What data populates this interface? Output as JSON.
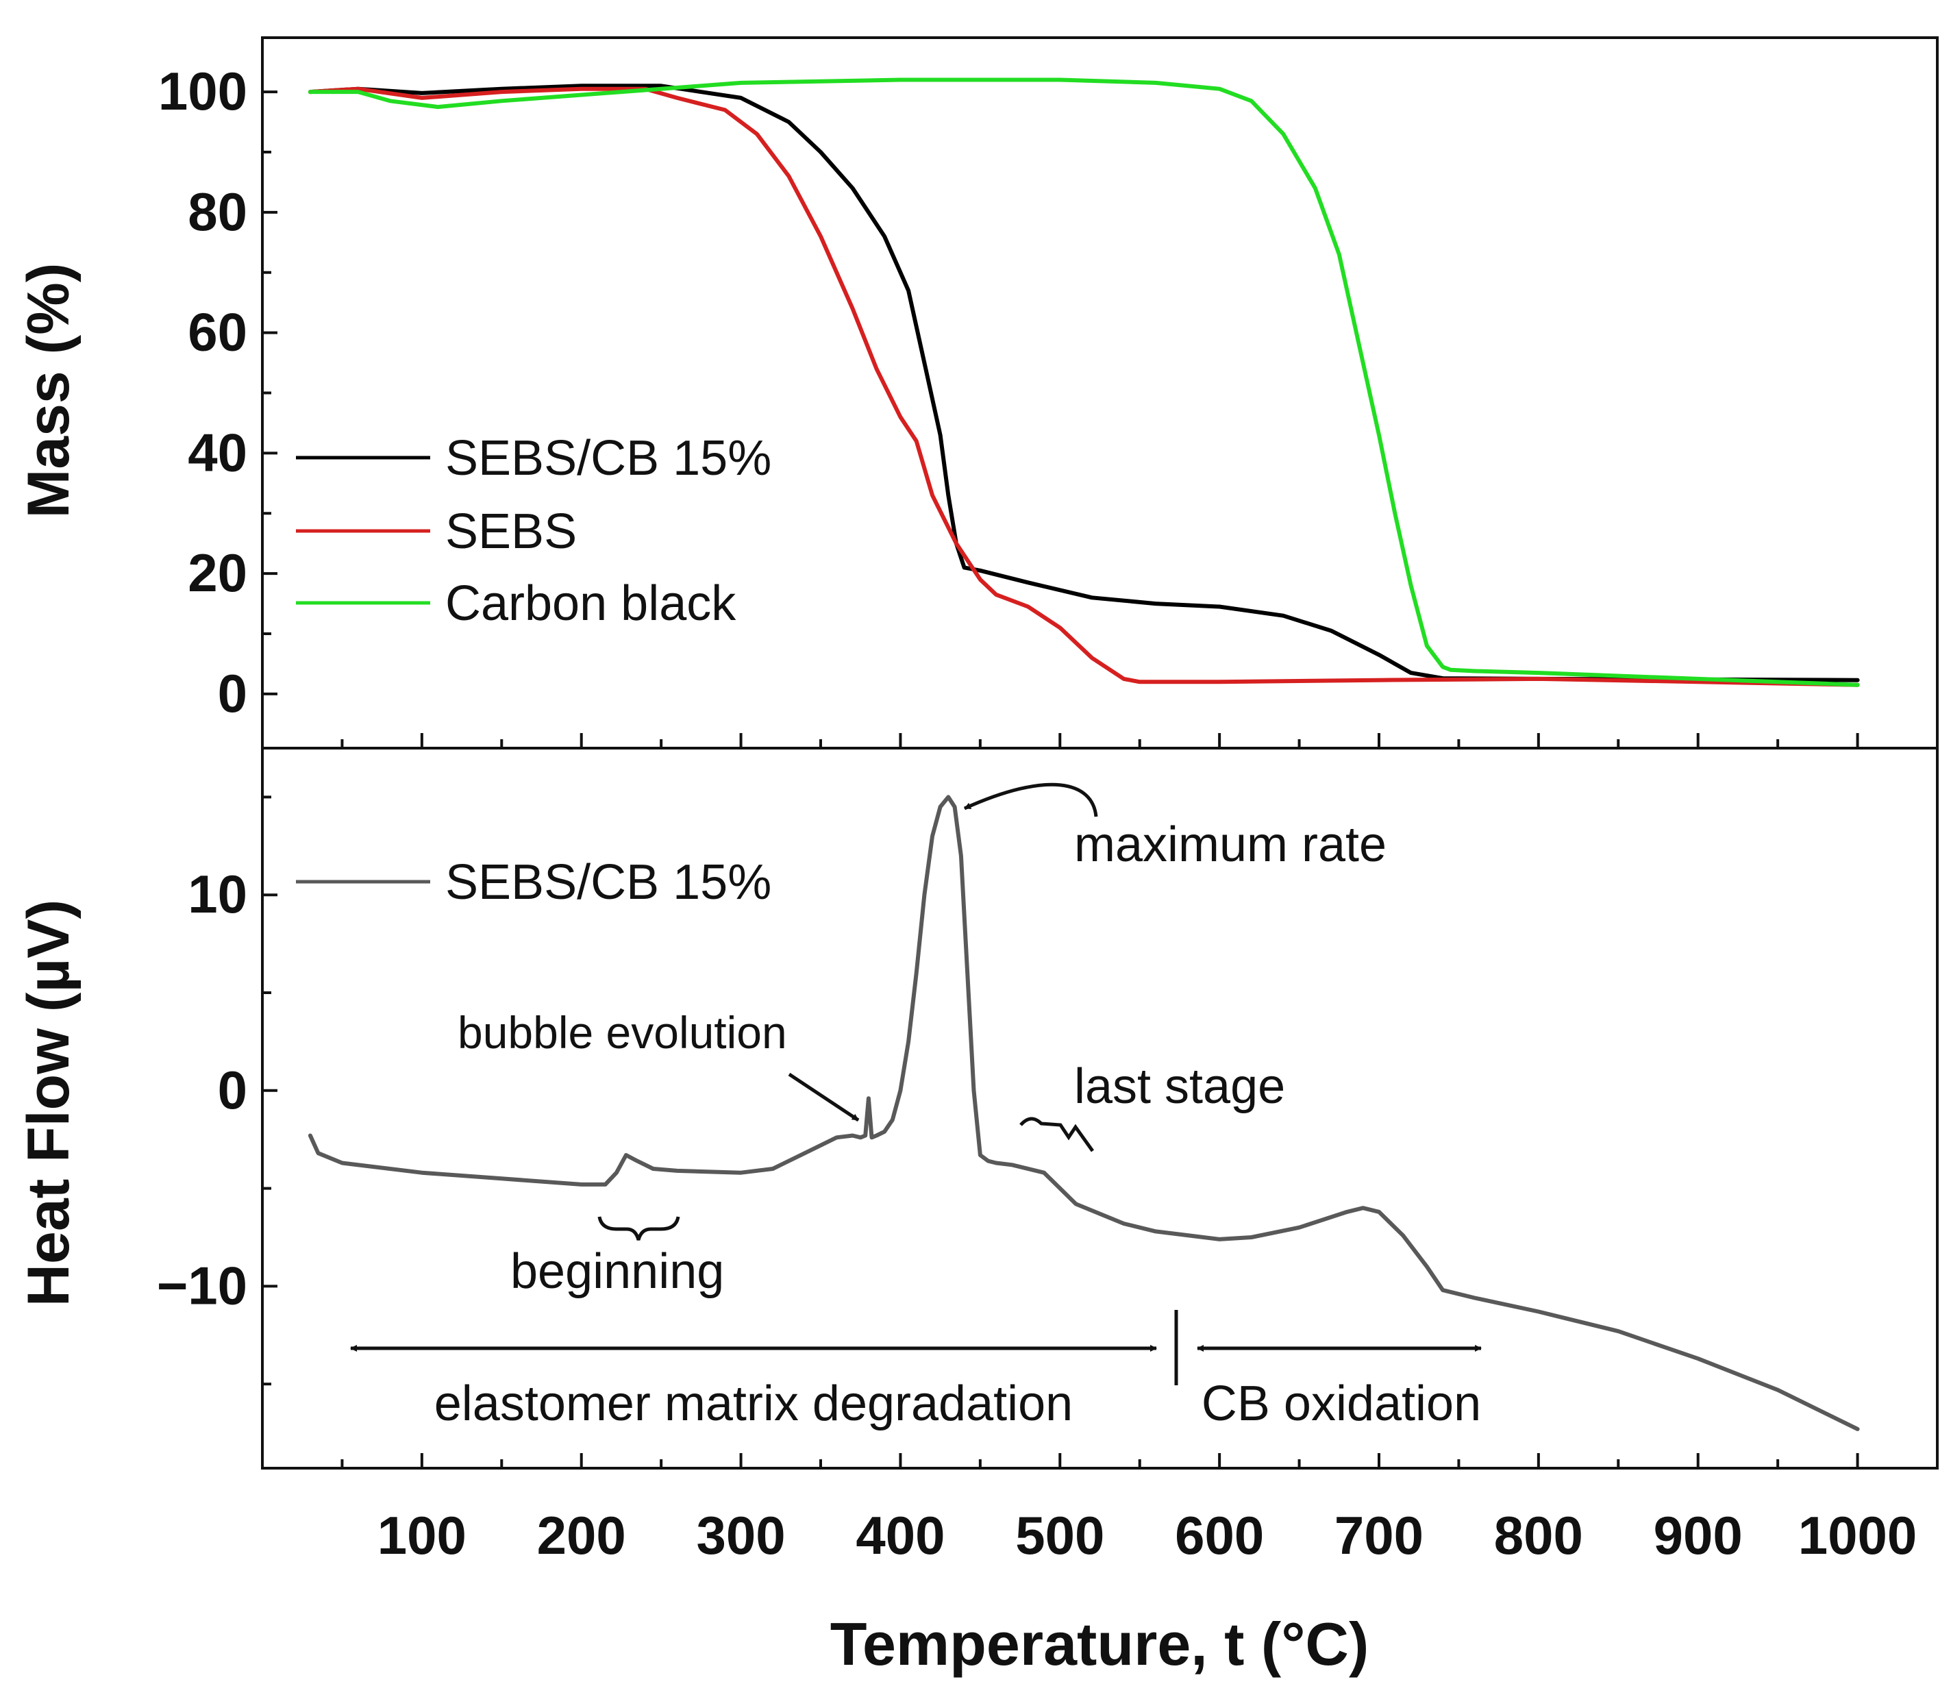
{
  "chart_data": [
    {
      "type": "line",
      "panel": "top",
      "ylabel": "Mass (%)",
      "xlim": [
        0,
        1050
      ],
      "ylim": [
        -9,
        109
      ],
      "y_ticks": [
        0,
        20,
        40,
        60,
        80,
        100
      ],
      "y_tick_labels": [
        "0",
        "20",
        "40",
        "60",
        "80",
        "100"
      ],
      "legend_position": "center-left",
      "series": [
        {
          "name": "SEBS/CB 15%",
          "color": "#000000",
          "x": [
            30,
            60,
            100,
            150,
            200,
            250,
            300,
            330,
            350,
            370,
            390,
            405,
            415,
            425,
            430,
            435,
            440,
            450,
            480,
            520,
            560,
            600,
            640,
            670,
            700,
            720,
            740,
            800,
            900,
            1000
          ],
          "y": [
            100,
            100.5,
            99.8,
            100.5,
            101,
            101,
            99,
            95,
            90,
            84,
            76,
            67,
            55,
            43,
            33,
            25,
            21,
            20.5,
            18.5,
            16,
            15,
            14.5,
            13,
            10.5,
            6.5,
            3.5,
            2.6,
            2.5,
            2.4,
            2.3
          ]
        },
        {
          "name": "SEBS",
          "color": "#d62020",
          "x": [
            30,
            60,
            100,
            150,
            200,
            240,
            260,
            290,
            310,
            330,
            350,
            370,
            385,
            400,
            410,
            420,
            435,
            450,
            460,
            480,
            500,
            520,
            540,
            550,
            600,
            700,
            800,
            900,
            1000
          ],
          "y": [
            100,
            100.5,
            99,
            100,
            100.5,
            100.5,
            99,
            97,
            93,
            86,
            76,
            64,
            54,
            46,
            42,
            33,
            25,
            19,
            16.5,
            14.5,
            11,
            6,
            2.5,
            2,
            2,
            2.3,
            2.5,
            2,
            1.5
          ]
        },
        {
          "name": "Carbon black",
          "color": "#22dd22",
          "x": [
            30,
            60,
            80,
            110,
            150,
            200,
            250,
            300,
            400,
            500,
            560,
            600,
            620,
            640,
            660,
            675,
            690,
            700,
            710,
            720,
            730,
            740,
            745,
            760,
            800,
            900,
            1000
          ],
          "y": [
            100,
            100,
            98.5,
            97.5,
            98.5,
            99.5,
            100.5,
            101.5,
            102,
            102,
            101.5,
            100.5,
            98.5,
            93,
            84,
            73,
            55,
            43,
            30,
            18,
            8,
            4.5,
            4,
            3.8,
            3.5,
            2.5,
            1.5
          ]
        }
      ]
    },
    {
      "type": "line",
      "panel": "bottom",
      "xlabel": "Temperature, t (°C)",
      "ylabel": "Heat Flow (µV)",
      "xlim": [
        0,
        1050
      ],
      "ylim": [
        -19.3,
        17.5
      ],
      "x_ticks": [
        100,
        200,
        300,
        400,
        500,
        600,
        700,
        800,
        900,
        1000
      ],
      "x_tick_labels": [
        "100",
        "200",
        "300",
        "400",
        "500",
        "600",
        "700",
        "800",
        "900",
        "1000"
      ],
      "y_ticks": [
        -10,
        0,
        10
      ],
      "y_tick_labels": [
        "−10",
        "0",
        "10"
      ],
      "legend_position": "top-left",
      "series": [
        {
          "name": "SEBS/CB 15%",
          "color": "#595959",
          "x": [
            30,
            35,
            50,
            100,
            150,
            200,
            215,
            222,
            228,
            235,
            245,
            260,
            300,
            320,
            340,
            360,
            370,
            375,
            378,
            380,
            382,
            385,
            390,
            395,
            400,
            405,
            410,
            415,
            420,
            425,
            430,
            434,
            438,
            442,
            446,
            450,
            455,
            460,
            470,
            490,
            510,
            540,
            560,
            580,
            600,
            620,
            650,
            680,
            690,
            700,
            715,
            730,
            740,
            760,
            800,
            850,
            900,
            950,
            1000
          ],
          "y": [
            -2.3,
            -3.2,
            -3.7,
            -4.2,
            -4.5,
            -4.8,
            -4.8,
            -4.2,
            -3.3,
            -3.6,
            -4,
            -4.1,
            -4.2,
            -4.0,
            -3.2,
            -2.4,
            -2.3,
            -2.4,
            -2.3,
            -0.4,
            -2.4,
            -2.3,
            -2.1,
            -1.5,
            0,
            2.5,
            6,
            10,
            13,
            14.5,
            15,
            14.5,
            12,
            6,
            0,
            -3.3,
            -3.6,
            -3.7,
            -3.8,
            -4.2,
            -5.8,
            -6.8,
            -7.2,
            -7.4,
            -7.6,
            -7.5,
            -7,
            -6.2,
            -6.0,
            -6.2,
            -7.4,
            -9,
            -10.2,
            -10.6,
            -11.3,
            -12.3,
            -13.7,
            -15.3,
            -17.3
          ]
        }
      ],
      "annotations": [
        "maximum rate",
        "bubble evolution",
        "last stage",
        "beginning",
        "elastomer matrix degradation",
        "CB oxidation"
      ]
    }
  ]
}
